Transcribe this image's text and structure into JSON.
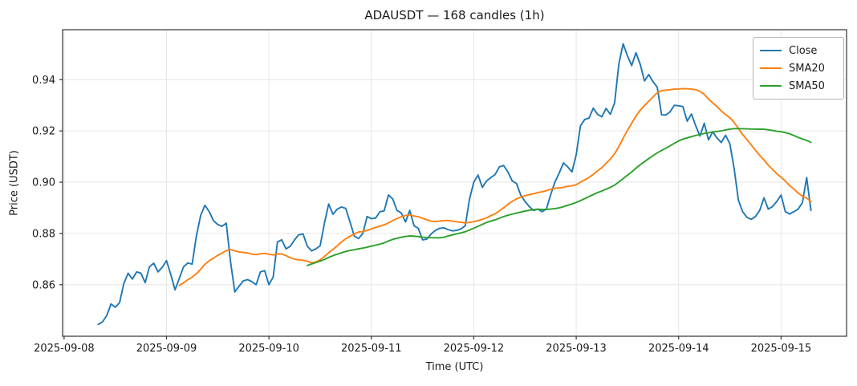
{
  "chart_data": {
    "type": "line",
    "title": "ADAUSDT — 168 candles (1h)",
    "xlabel": "Time (UTC)",
    "ylabel": "Price (USDT)",
    "symbol": "ADAUSDT",
    "candle_count": 168,
    "interval": "1h",
    "x_start_utc": "2025-09-08 08:00",
    "series": [
      {
        "name": "Close",
        "kind": "price",
        "color": "#1f77b4"
      },
      {
        "name": "SMA20",
        "kind": "sma",
        "window": 20,
        "color": "#ff7f0e"
      },
      {
        "name": "SMA50",
        "kind": "sma",
        "window": 50,
        "color": "#2ca02c"
      }
    ],
    "close": [
      0.8445,
      0.8455,
      0.848,
      0.8525,
      0.8512,
      0.853,
      0.8605,
      0.8645,
      0.8622,
      0.865,
      0.8645,
      0.8608,
      0.867,
      0.8684,
      0.865,
      0.8668,
      0.8694,
      0.864,
      0.858,
      0.8625,
      0.867,
      0.8685,
      0.868,
      0.879,
      0.887,
      0.891,
      0.8885,
      0.885,
      0.8835,
      0.8828,
      0.884,
      0.869,
      0.8572,
      0.8594,
      0.8615,
      0.862,
      0.8612,
      0.86,
      0.865,
      0.8655,
      0.86,
      0.863,
      0.8767,
      0.8775,
      0.874,
      0.875,
      0.8775,
      0.8795,
      0.8798,
      0.875,
      0.8732,
      0.874,
      0.8752,
      0.884,
      0.8915,
      0.8875,
      0.8895,
      0.8903,
      0.8898,
      0.8845,
      0.879,
      0.878,
      0.88,
      0.8866,
      0.8858,
      0.886,
      0.8885,
      0.8888,
      0.895,
      0.8935,
      0.889,
      0.888,
      0.8845,
      0.889,
      0.883,
      0.882,
      0.8775,
      0.8778,
      0.8798,
      0.8812,
      0.882,
      0.8822,
      0.8815,
      0.881,
      0.8812,
      0.8818,
      0.883,
      0.8934,
      0.9,
      0.9028,
      0.898,
      0.9005,
      0.9018,
      0.903,
      0.906,
      0.9065,
      0.904,
      0.9005,
      0.8995,
      0.895,
      0.8925,
      0.8905,
      0.889,
      0.8895,
      0.8885,
      0.8895,
      0.895,
      0.9,
      0.9035,
      0.9075,
      0.906,
      0.904,
      0.9107,
      0.922,
      0.9245,
      0.925,
      0.9289,
      0.9265,
      0.9255,
      0.9288,
      0.9265,
      0.931,
      0.9462,
      0.954,
      0.9493,
      0.9455,
      0.9505,
      0.946,
      0.9395,
      0.942,
      0.9392,
      0.937,
      0.9263,
      0.9262,
      0.9275,
      0.93,
      0.9298,
      0.9295,
      0.9238,
      0.9266,
      0.922,
      0.918,
      0.923,
      0.9165,
      0.9197,
      0.9172,
      0.9155,
      0.9183,
      0.915,
      0.9054,
      0.893,
      0.8885,
      0.8863,
      0.8855,
      0.8866,
      0.889,
      0.8939,
      0.8895,
      0.8905,
      0.8925,
      0.895,
      0.8885,
      0.8876,
      0.8885,
      0.8895,
      0.892,
      0.9018,
      0.889
    ],
    "y_ticks": [
      0.86,
      0.88,
      0.9,
      0.92,
      0.94
    ],
    "x_ticks": [
      {
        "label": "2025-09-08",
        "hour": -8
      },
      {
        "label": "2025-09-09",
        "hour": 16
      },
      {
        "label": "2025-09-10",
        "hour": 40
      },
      {
        "label": "2025-09-11",
        "hour": 64
      },
      {
        "label": "2025-09-12",
        "hour": 88
      },
      {
        "label": "2025-09-13",
        "hour": 112
      },
      {
        "label": "2025-09-14",
        "hour": 136
      },
      {
        "label": "2025-09-15",
        "hour": 160
      }
    ],
    "ylim": [
      0.8399,
      0.9595
    ],
    "xlim_hours": [
      -8.35,
      175.35
    ],
    "grid": true,
    "legend_position": "upper right"
  },
  "style_colors": {
    "grid": "#e6e6e6",
    "spine": "#333333",
    "tick_text": "#1a1a1a",
    "background": "#ffffff"
  }
}
